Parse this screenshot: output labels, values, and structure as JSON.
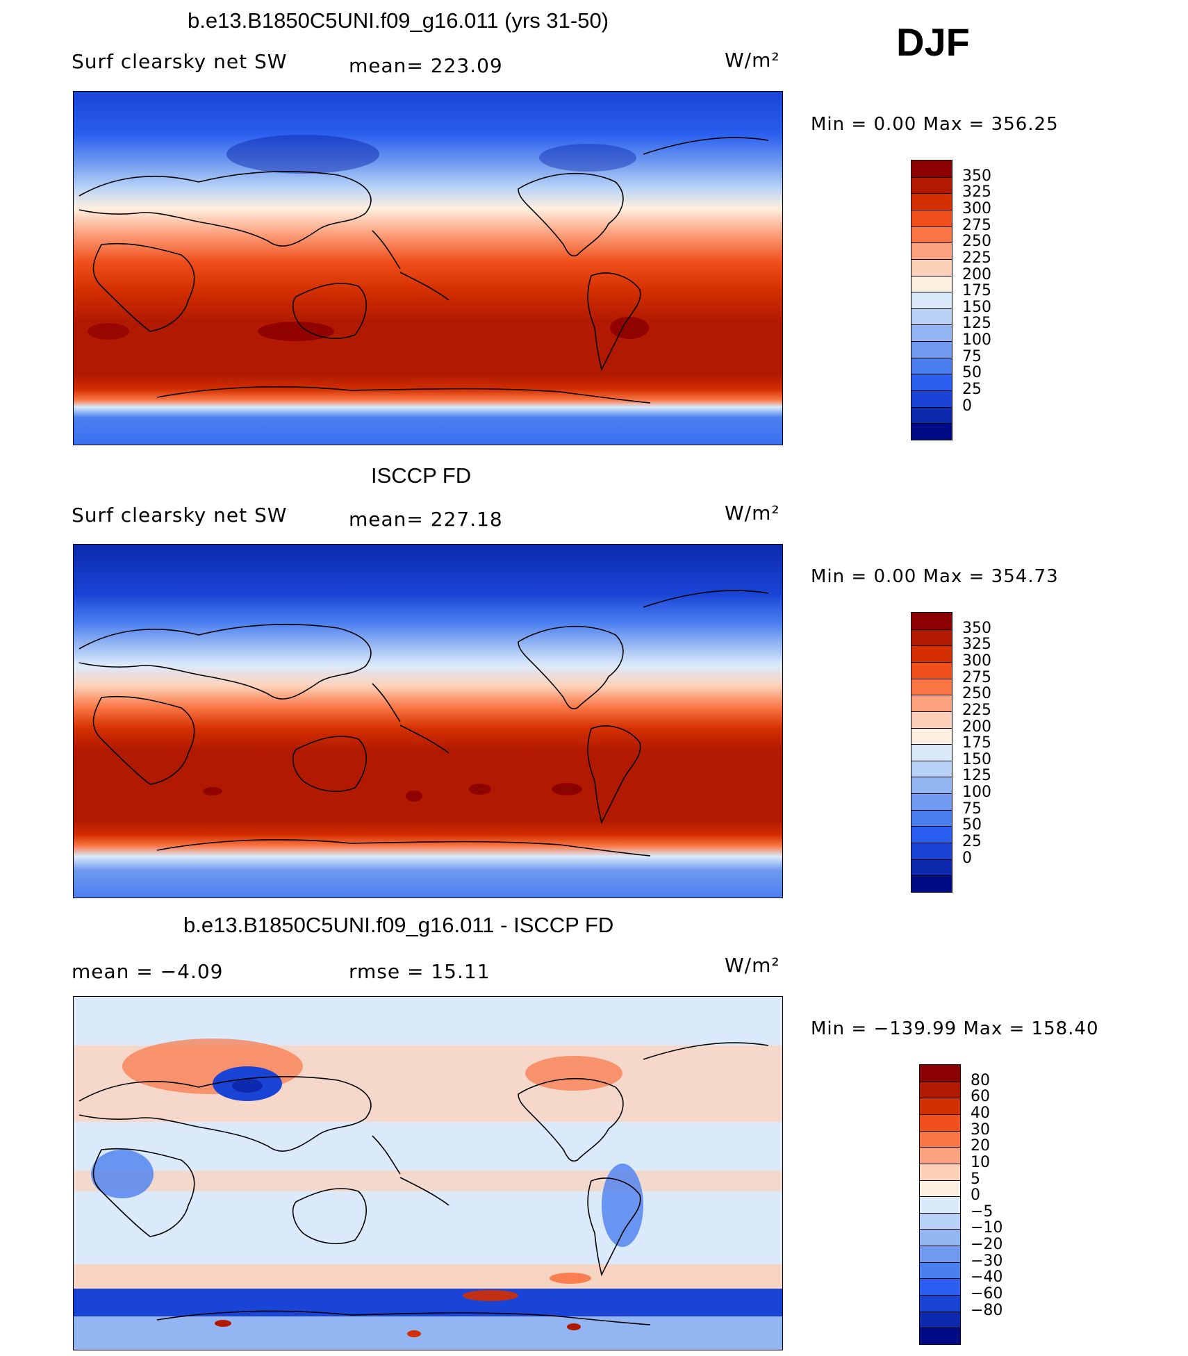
{
  "season": "DJF",
  "panels": [
    {
      "title": "b.e13.B1850C5UNI.f09_g16.011 (yrs 31-50)",
      "left_label": "Surf clearsky net SW",
      "center_label": "mean= 223.09",
      "units": "W/m²",
      "minmax": "Min =     0.00 Max = 356.25",
      "colorbar": {
        "colors": [
          "#8b0000",
          "#b11a00",
          "#d42f00",
          "#f0501c",
          "#fa7544",
          "#fca17e",
          "#fdd1b8",
          "#fef0e0",
          "#dbeafb",
          "#b8d3f7",
          "#93b5f2",
          "#6f9af0",
          "#4b7ff0",
          "#2a5fef",
          "#1a44d6",
          "#0d2aae",
          "#000c85"
        ],
        "labels": [
          "350",
          "325",
          "300",
          "275",
          "250",
          "225",
          "200",
          "175",
          "150",
          "125",
          "100",
          "75",
          "50",
          "25",
          "0"
        ]
      }
    },
    {
      "title": "ISCCP FD",
      "left_label": "Surf clearsky net SW",
      "center_label": "mean= 227.18",
      "units": "W/m²",
      "minmax": "Min =     0.00 Max = 354.73",
      "colorbar": {
        "colors": [
          "#8b0000",
          "#b11a00",
          "#d42f00",
          "#f0501c",
          "#fa7544",
          "#fca17e",
          "#fdd1b8",
          "#fef0e0",
          "#dbeafb",
          "#b8d3f7",
          "#93b5f2",
          "#6f9af0",
          "#4b7ff0",
          "#2a5fef",
          "#1a44d6",
          "#0d2aae",
          "#000c85"
        ],
        "labels": [
          "350",
          "325",
          "300",
          "275",
          "250",
          "225",
          "200",
          "175",
          "150",
          "125",
          "100",
          "75",
          "50",
          "25",
          "0"
        ]
      }
    },
    {
      "title": "b.e13.B1850C5UNI.f09_g16.011 - ISCCP FD",
      "left_label": "mean =    −4.09",
      "center_label": "rmse =    15.11",
      "units": "W/m²",
      "minmax": "Min = −139.99 Max = 158.40",
      "colorbar": {
        "colors": [
          "#8b0000",
          "#b11a00",
          "#d42f00",
          "#f0501c",
          "#fa7544",
          "#fca17e",
          "#fdd1b8",
          "#fef0e0",
          "#dbeafb",
          "#b8d3f7",
          "#93b5f2",
          "#6f9af0",
          "#4b7ff0",
          "#2a5fef",
          "#1a44d6",
          "#0d2aae",
          "#000c85"
        ],
        "labels": [
          "80",
          "60",
          "40",
          "30",
          "20",
          "10",
          "5",
          "0",
          "−5",
          "−10",
          "−20",
          "−30",
          "−40",
          "−60",
          "−80"
        ]
      }
    }
  ]
}
